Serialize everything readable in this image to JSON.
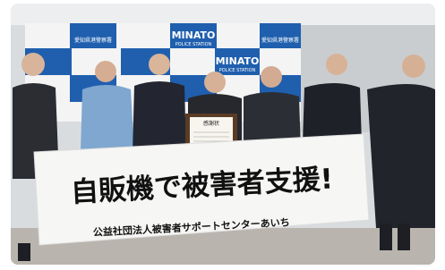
{
  "backdrop": {
    "tiles": [
      {
        "line1": "MINATO",
        "line2": "POLICE STATION"
      },
      {
        "line1": "MINATO",
        "line2": "POLICE STATION"
      }
    ],
    "labels": [
      "愛知県港警察署",
      "愛知県港警察署"
    ]
  },
  "certificate": {
    "title": "感謝状"
  },
  "banner": {
    "slogan": "自販機で被害者支援!",
    "organization": "公益社団法人被害者サポートセンターあいち"
  }
}
